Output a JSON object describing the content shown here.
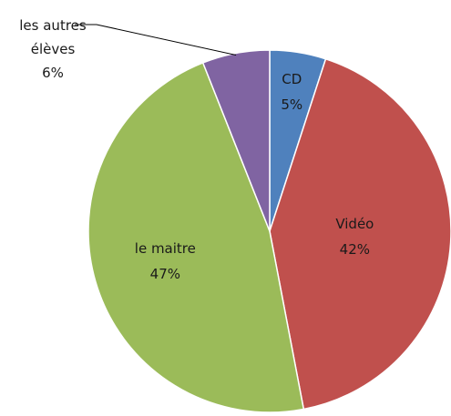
{
  "chart_data": {
    "type": "pie",
    "categories": [
      "CD",
      "Vidéo",
      "le maitre",
      "les autres élèves"
    ],
    "values": [
      5,
      42,
      47,
      6
    ],
    "value_labels": [
      "5%",
      "42%",
      "47%",
      "6%"
    ],
    "colors": [
      "#4f81bd",
      "#c0504d",
      "#9bbb59",
      "#8064a2"
    ]
  }
}
